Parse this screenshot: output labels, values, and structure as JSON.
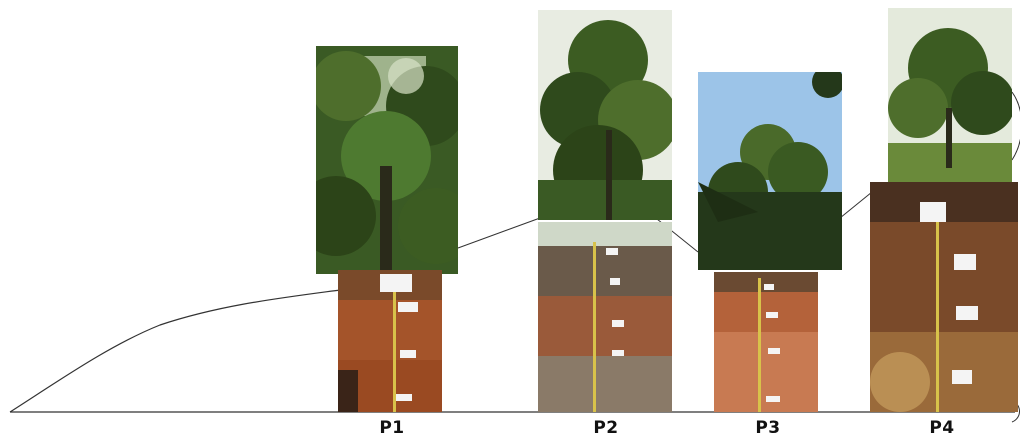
{
  "figure": {
    "profiles": [
      {
        "id": "p1",
        "label": "P1",
        "tree_photo": "tree-canopy-photo",
        "soil_photo": "soil-profile-photo"
      },
      {
        "id": "p2",
        "label": "P2",
        "tree_photo": "tree-canopy-photo",
        "soil_photo": "soil-profile-photo"
      },
      {
        "id": "p3",
        "label": "P3",
        "tree_photo": "tree-canopy-photo",
        "soil_photo": "soil-profile-photo"
      },
      {
        "id": "p4",
        "label": "P4",
        "tree_photo": "tree-canopy-photo",
        "soil_photo": "soil-profile-photo"
      }
    ],
    "colors": {
      "foliage_dark": "#2f4a1c",
      "foliage_mid": "#4e6e2c",
      "sky": "#9cc4e8",
      "soil_red": "#a4542a",
      "soil_brown": "#7a4a2a",
      "soil_gray": "#8a7a68",
      "tape": "#d8c24a"
    }
  }
}
